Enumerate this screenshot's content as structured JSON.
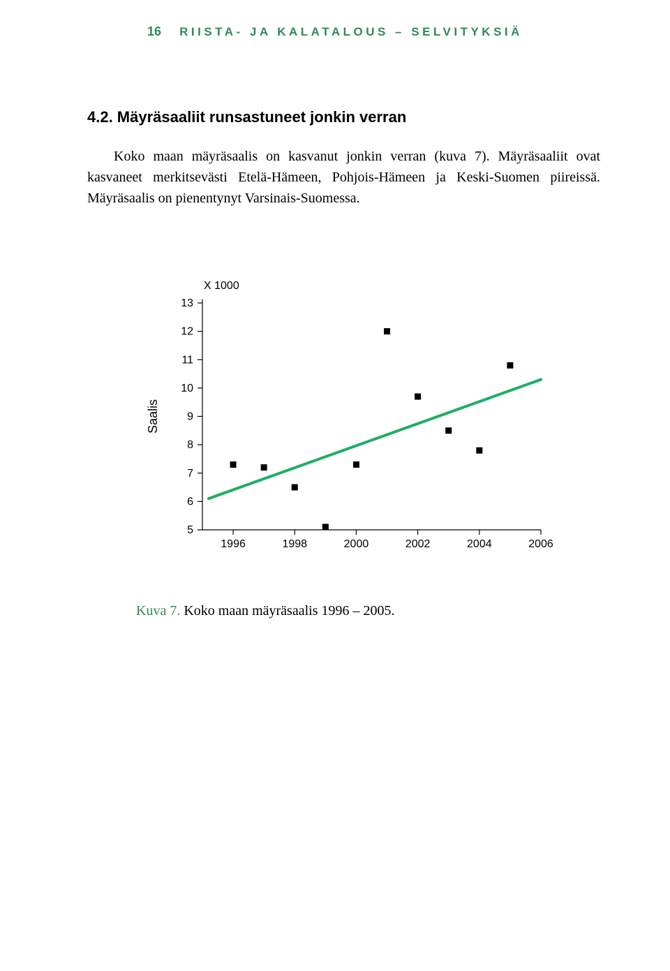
{
  "header": {
    "page_number": "16",
    "running_title": "RIISTA- JA KALATALOUS – SELVITYKSIÄ"
  },
  "section": {
    "heading": "4.2. Mäyräsaaliit runsastuneet jonkin verran",
    "body": "Koko maan mäyräsaalis on kasvanut jonkin verran (kuva 7). Mäyräsaaliit ovat kasvaneet merkitsevästi Etelä-Hämeen, Pohjois-Hämeen ja Keski-Suomen piireissä. Mäyräsaalis on pienentynyt Varsinais-Suomessa."
  },
  "chart": {
    "type": "scatter_with_trend",
    "unit_label": "X 1000",
    "y_label": "Saalis",
    "y_ticks": [
      5,
      6,
      7,
      8,
      9,
      10,
      11,
      12,
      13
    ],
    "x_ticks": [
      1996,
      1998,
      2000,
      2002,
      2004,
      2006
    ],
    "x_domain": [
      1995,
      2006
    ],
    "y_domain": [
      5,
      13
    ],
    "points": [
      {
        "x": 1996,
        "y": 7.3
      },
      {
        "x": 1997,
        "y": 7.2
      },
      {
        "x": 1998,
        "y": 6.5
      },
      {
        "x": 1999,
        "y": 5.1
      },
      {
        "x": 2000,
        "y": 7.3
      },
      {
        "x": 2001,
        "y": 12.0
      },
      {
        "x": 2002,
        "y": 9.7
      },
      {
        "x": 2003,
        "y": 8.5
      },
      {
        "x": 2004,
        "y": 7.8
      },
      {
        "x": 2005,
        "y": 10.8
      }
    ],
    "trend_line": {
      "x1": 1995.2,
      "y1": 6.1,
      "x2": 2006,
      "y2": 10.3
    },
    "marker": {
      "shape": "square",
      "size": 9,
      "color": "#000000"
    },
    "trend_color": "#1fae66",
    "trend_width": 4,
    "axis_color": "#000000",
    "axis_width": 1.2,
    "tick_length": 7,
    "font_family": "Arial, Helvetica, sans-serif",
    "tick_fontsize": 16,
    "unit_fontsize": 16,
    "ylabel_fontsize": 18,
    "background_color": "#ffffff"
  },
  "caption": {
    "label": "Kuva 7.",
    "text": " Koko maan mäyräsaalis 1996 – 2005."
  },
  "colors": {
    "accent": "#2e8b57",
    "text": "#000000",
    "background": "#ffffff"
  }
}
